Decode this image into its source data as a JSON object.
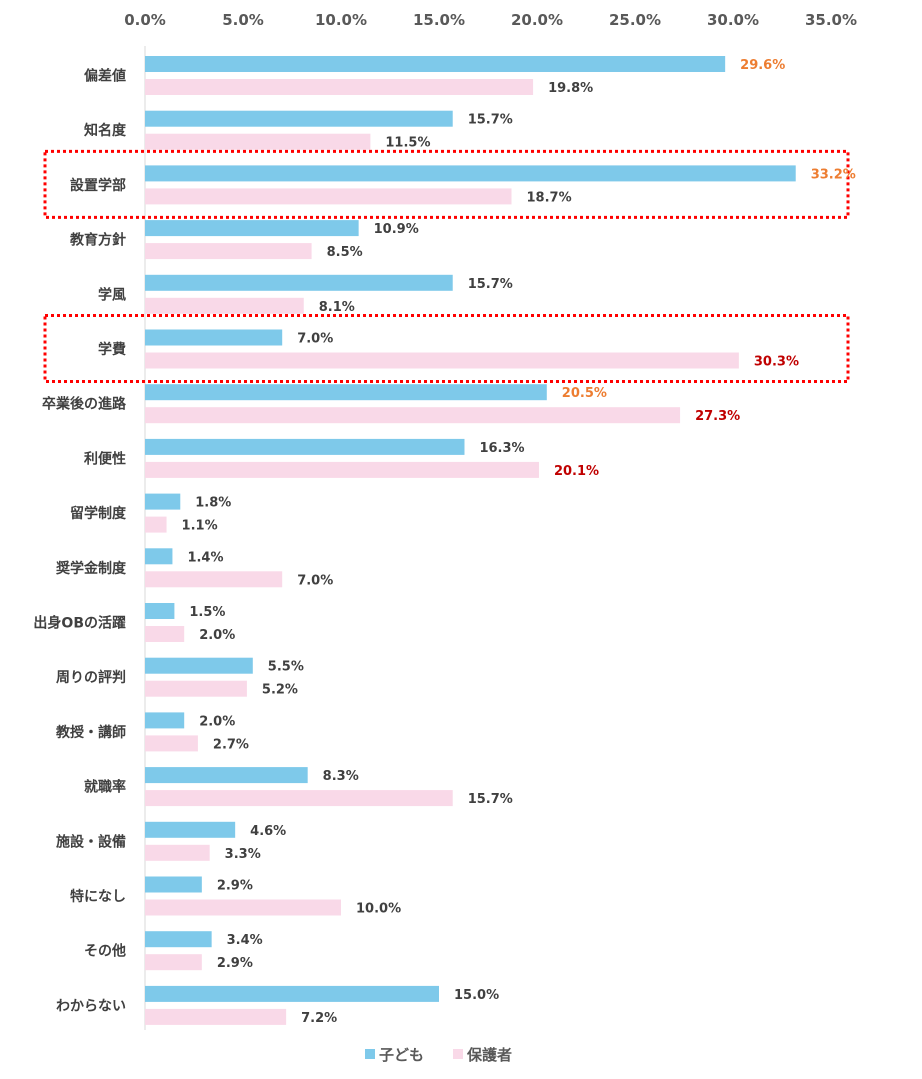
{
  "chart_data": {
    "type": "bar",
    "orientation": "horizontal",
    "categories": [
      "偏差値",
      "知名度",
      "設置学部",
      "教育方針",
      "学風",
      "学費",
      "卒業後の進路",
      "利便性",
      "留学制度",
      "奨学金制度",
      "出身OBの活躍",
      "周りの評判",
      "教授・講師",
      "就職率",
      "施設・設備",
      "特になし",
      "その他",
      "わからない"
    ],
    "series": [
      {
        "name": "子ども",
        "color": "#7ec9ea",
        "values": [
          29.6,
          15.7,
          33.2,
          10.9,
          15.7,
          7.0,
          20.5,
          16.3,
          1.8,
          1.4,
          1.5,
          5.5,
          2.0,
          8.3,
          4.6,
          2.9,
          3.4,
          15.0
        ],
        "labels": [
          "29.6%",
          "15.7%",
          "33.2%",
          "10.9%",
          "15.7%",
          "7.0%",
          "20.5%",
          "16.3%",
          "1.8%",
          "1.4%",
          "1.5%",
          "5.5%",
          "2.0%",
          "8.3%",
          "4.6%",
          "2.9%",
          "3.4%",
          "15.0%"
        ],
        "label_colors": [
          "#ed7d31",
          "#404040",
          "#ed7d31",
          "#404040",
          "#404040",
          "#404040",
          "#ed7d31",
          "#404040",
          "#404040",
          "#404040",
          "#404040",
          "#404040",
          "#404040",
          "#404040",
          "#404040",
          "#404040",
          "#404040",
          "#404040"
        ]
      },
      {
        "name": "保護者",
        "color": "#f9d9e8",
        "values": [
          19.8,
          11.5,
          18.7,
          8.5,
          8.1,
          30.3,
          27.3,
          20.1,
          1.1,
          7.0,
          2.0,
          5.2,
          2.7,
          15.7,
          3.3,
          10.0,
          2.9,
          7.2
        ],
        "labels": [
          "19.8%",
          "11.5%",
          "18.7%",
          "8.5%",
          "8.1%",
          "30.3%",
          "27.3%",
          "20.1%",
          "1.1%",
          "7.0%",
          "2.0%",
          "5.2%",
          "2.7%",
          "15.7%",
          "3.3%",
          "10.0%",
          "2.9%",
          "7.2%"
        ],
        "label_colors": [
          "#404040",
          "#404040",
          "#404040",
          "#404040",
          "#404040",
          "#c00000",
          "#c00000",
          "#c00000",
          "#404040",
          "#404040",
          "#404040",
          "#404040",
          "#404040",
          "#404040",
          "#404040",
          "#404040",
          "#404040",
          "#404040"
        ]
      }
    ],
    "xlim": [
      0,
      35
    ],
    "x_ticks": [
      "0.0%",
      "5.0%",
      "10.0%",
      "15.0%",
      "20.0%",
      "25.0%",
      "30.0%",
      "35.0%"
    ],
    "axis_position": "top",
    "grid": false,
    "legend_position": "bottom",
    "highlighted_categories": [
      "設置学部",
      "学費"
    ],
    "highlight_color": "#ff0000"
  }
}
